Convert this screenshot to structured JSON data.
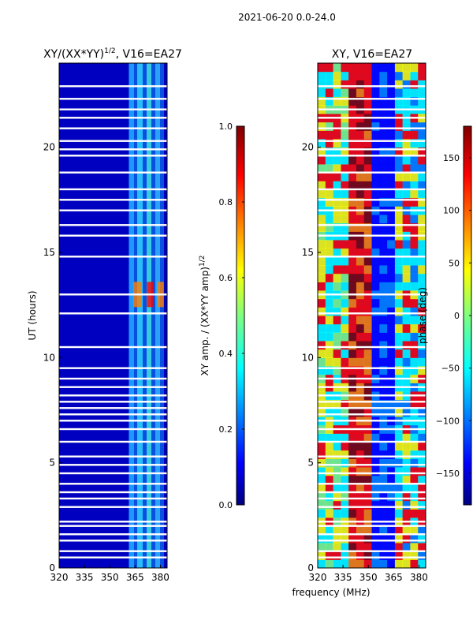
{
  "figure_title": "2021-06-20 0.0-24.0",
  "colors": {
    "jet": [
      "#00007f",
      "#0000ff",
      "#007fff",
      "#00ffff",
      "#7fff7f",
      "#ffff00",
      "#ff7f00",
      "#ff0000",
      "#7f0000"
    ],
    "background": "#ffffff",
    "axis": "#000000"
  },
  "chart_data": [
    {
      "type": "heatmap",
      "title": "XY/(XX*YY)^1/2, V16=EA27",
      "title_main": "XY/(XX*YY)",
      "title_sup": "1/2",
      "title_tail": ", V16=EA27",
      "xlabel": "",
      "ylabel": "UT (hours)",
      "xlim": [
        320,
        384
      ],
      "ylim": [
        0,
        24
      ],
      "xticks": [
        320,
        335,
        350,
        365,
        380
      ],
      "yticks": [
        0,
        5,
        10,
        15,
        20
      ],
      "colorbar": {
        "label_main": "XY amp. / (XX*YY amp)",
        "label_sup": "1/2",
        "range": [
          0.0,
          1.0
        ],
        "ticks": [
          "0.0",
          "0.2",
          "0.4",
          "0.6",
          "0.8",
          "1.0"
        ],
        "tick_values": [
          0.0,
          0.2,
          0.4,
          0.6,
          0.8,
          1.0
        ]
      },
      "gaps_hours": [
        0.5,
        0.8,
        1.3,
        1.6,
        2.0,
        2.2,
        2.9,
        3.3,
        3.6,
        4.0,
        4.5,
        4.9,
        5.3,
        6.0,
        6.6,
        7.0,
        7.3,
        7.6,
        7.9,
        8.2,
        8.6,
        9.0,
        9.5,
        10.5,
        12.1,
        13.0,
        14.8,
        15.8,
        16.3,
        17.0,
        17.5,
        18.0,
        18.8,
        19.6,
        19.9,
        20.3,
        20.9,
        21.4,
        21.8,
        22.3,
        22.9
      ],
      "bright_band_mhz": [
        360,
        382
      ],
      "peak_hours": [
        12.4,
        13.6
      ]
    },
    {
      "type": "heatmap",
      "title": "XY, V16=EA27",
      "xlabel": "frequency (MHz)",
      "ylabel": "",
      "xlim": [
        320,
        384
      ],
      "ylim": [
        0,
        24
      ],
      "xticks": [
        320,
        335,
        350,
        365,
        380
      ],
      "yticks": [
        0,
        5,
        10,
        15,
        20
      ],
      "colorbar": {
        "label": "phase (deg)",
        "range": [
          -180,
          180
        ],
        "ticks": [
          "−150",
          "−100",
          "−50",
          "0",
          "50",
          "100",
          "150"
        ],
        "tick_values": [
          -150,
          -100,
          -50,
          0,
          50,
          100,
          150
        ]
      },
      "gaps_hours": [
        0.5,
        0.8,
        1.3,
        1.6,
        2.0,
        2.2,
        2.9,
        3.3,
        3.6,
        4.0,
        4.5,
        4.9,
        5.3,
        6.0,
        6.6,
        7.0,
        7.3,
        7.6,
        7.9,
        8.2,
        8.6,
        9.0,
        9.5,
        10.5,
        12.1,
        13.0,
        14.8,
        15.8,
        16.3,
        17.0,
        17.5,
        18.0,
        18.8,
        19.6,
        19.9,
        20.3,
        20.9,
        21.4,
        21.8,
        22.3,
        22.9
      ]
    }
  ]
}
